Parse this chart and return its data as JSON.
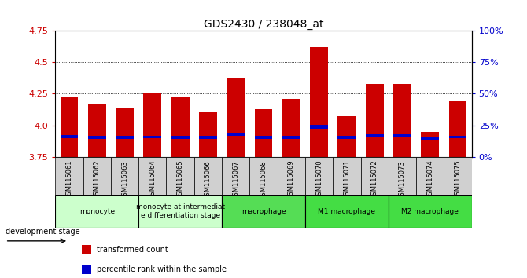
{
  "title": "GDS2430 / 238048_at",
  "samples": [
    "GSM115061",
    "GSM115062",
    "GSM115063",
    "GSM115064",
    "GSM115065",
    "GSM115066",
    "GSM115067",
    "GSM115068",
    "GSM115069",
    "GSM115070",
    "GSM115071",
    "GSM115072",
    "GSM115073",
    "GSM115074",
    "GSM115075"
  ],
  "bar_values": [
    4.22,
    4.17,
    4.14,
    4.25,
    4.22,
    4.11,
    4.38,
    4.13,
    4.21,
    4.62,
    4.07,
    4.33,
    4.33,
    3.95,
    4.2
  ],
  "percentile_bottoms": [
    3.9,
    3.893,
    3.893,
    3.896,
    3.895,
    3.893,
    3.918,
    3.895,
    3.895,
    3.975,
    3.893,
    3.91,
    3.908,
    3.888,
    3.898
  ],
  "percentile_heights": [
    0.022,
    0.022,
    0.022,
    0.022,
    0.022,
    0.022,
    0.022,
    0.022,
    0.022,
    0.03,
    0.022,
    0.025,
    0.022,
    0.018,
    0.022
  ],
  "ymin": 3.75,
  "ymax": 4.75,
  "bar_color": "#cc0000",
  "percentile_color": "#0000cc",
  "bar_width": 0.65,
  "grid_values_left": [
    3.75,
    4.0,
    4.25,
    4.5,
    4.75
  ],
  "right_axis_labels": [
    "0%",
    "25%",
    "50%",
    "75%",
    "100%"
  ],
  "right_axis_ticks": [
    3.75,
    4.0,
    4.25,
    4.5,
    4.75
  ],
  "groups": [
    {
      "label": "monocyte",
      "start": 0,
      "end": 3
    },
    {
      "label": "monocyte at intermediat\ne differentiation stage",
      "start": 3,
      "end": 6
    },
    {
      "label": "macrophage",
      "start": 6,
      "end": 9
    },
    {
      "label": "M1 macrophage",
      "start": 9,
      "end": 12
    },
    {
      "label": "M2 macrophage",
      "start": 12,
      "end": 15
    }
  ],
  "group_colors": [
    "#ccffcc",
    "#ccffcc",
    "#55dd55",
    "#44dd44",
    "#44dd44"
  ],
  "tick_bg_color": "#d0d0d0",
  "legend_items": [
    {
      "label": "transformed count",
      "color": "#cc0000"
    },
    {
      "label": "percentile rank within the sample",
      "color": "#0000cc"
    }
  ],
  "tick_label_color_left": "#cc0000",
  "tick_label_color_right": "#0000cc",
  "dev_stage_label": "development stage"
}
